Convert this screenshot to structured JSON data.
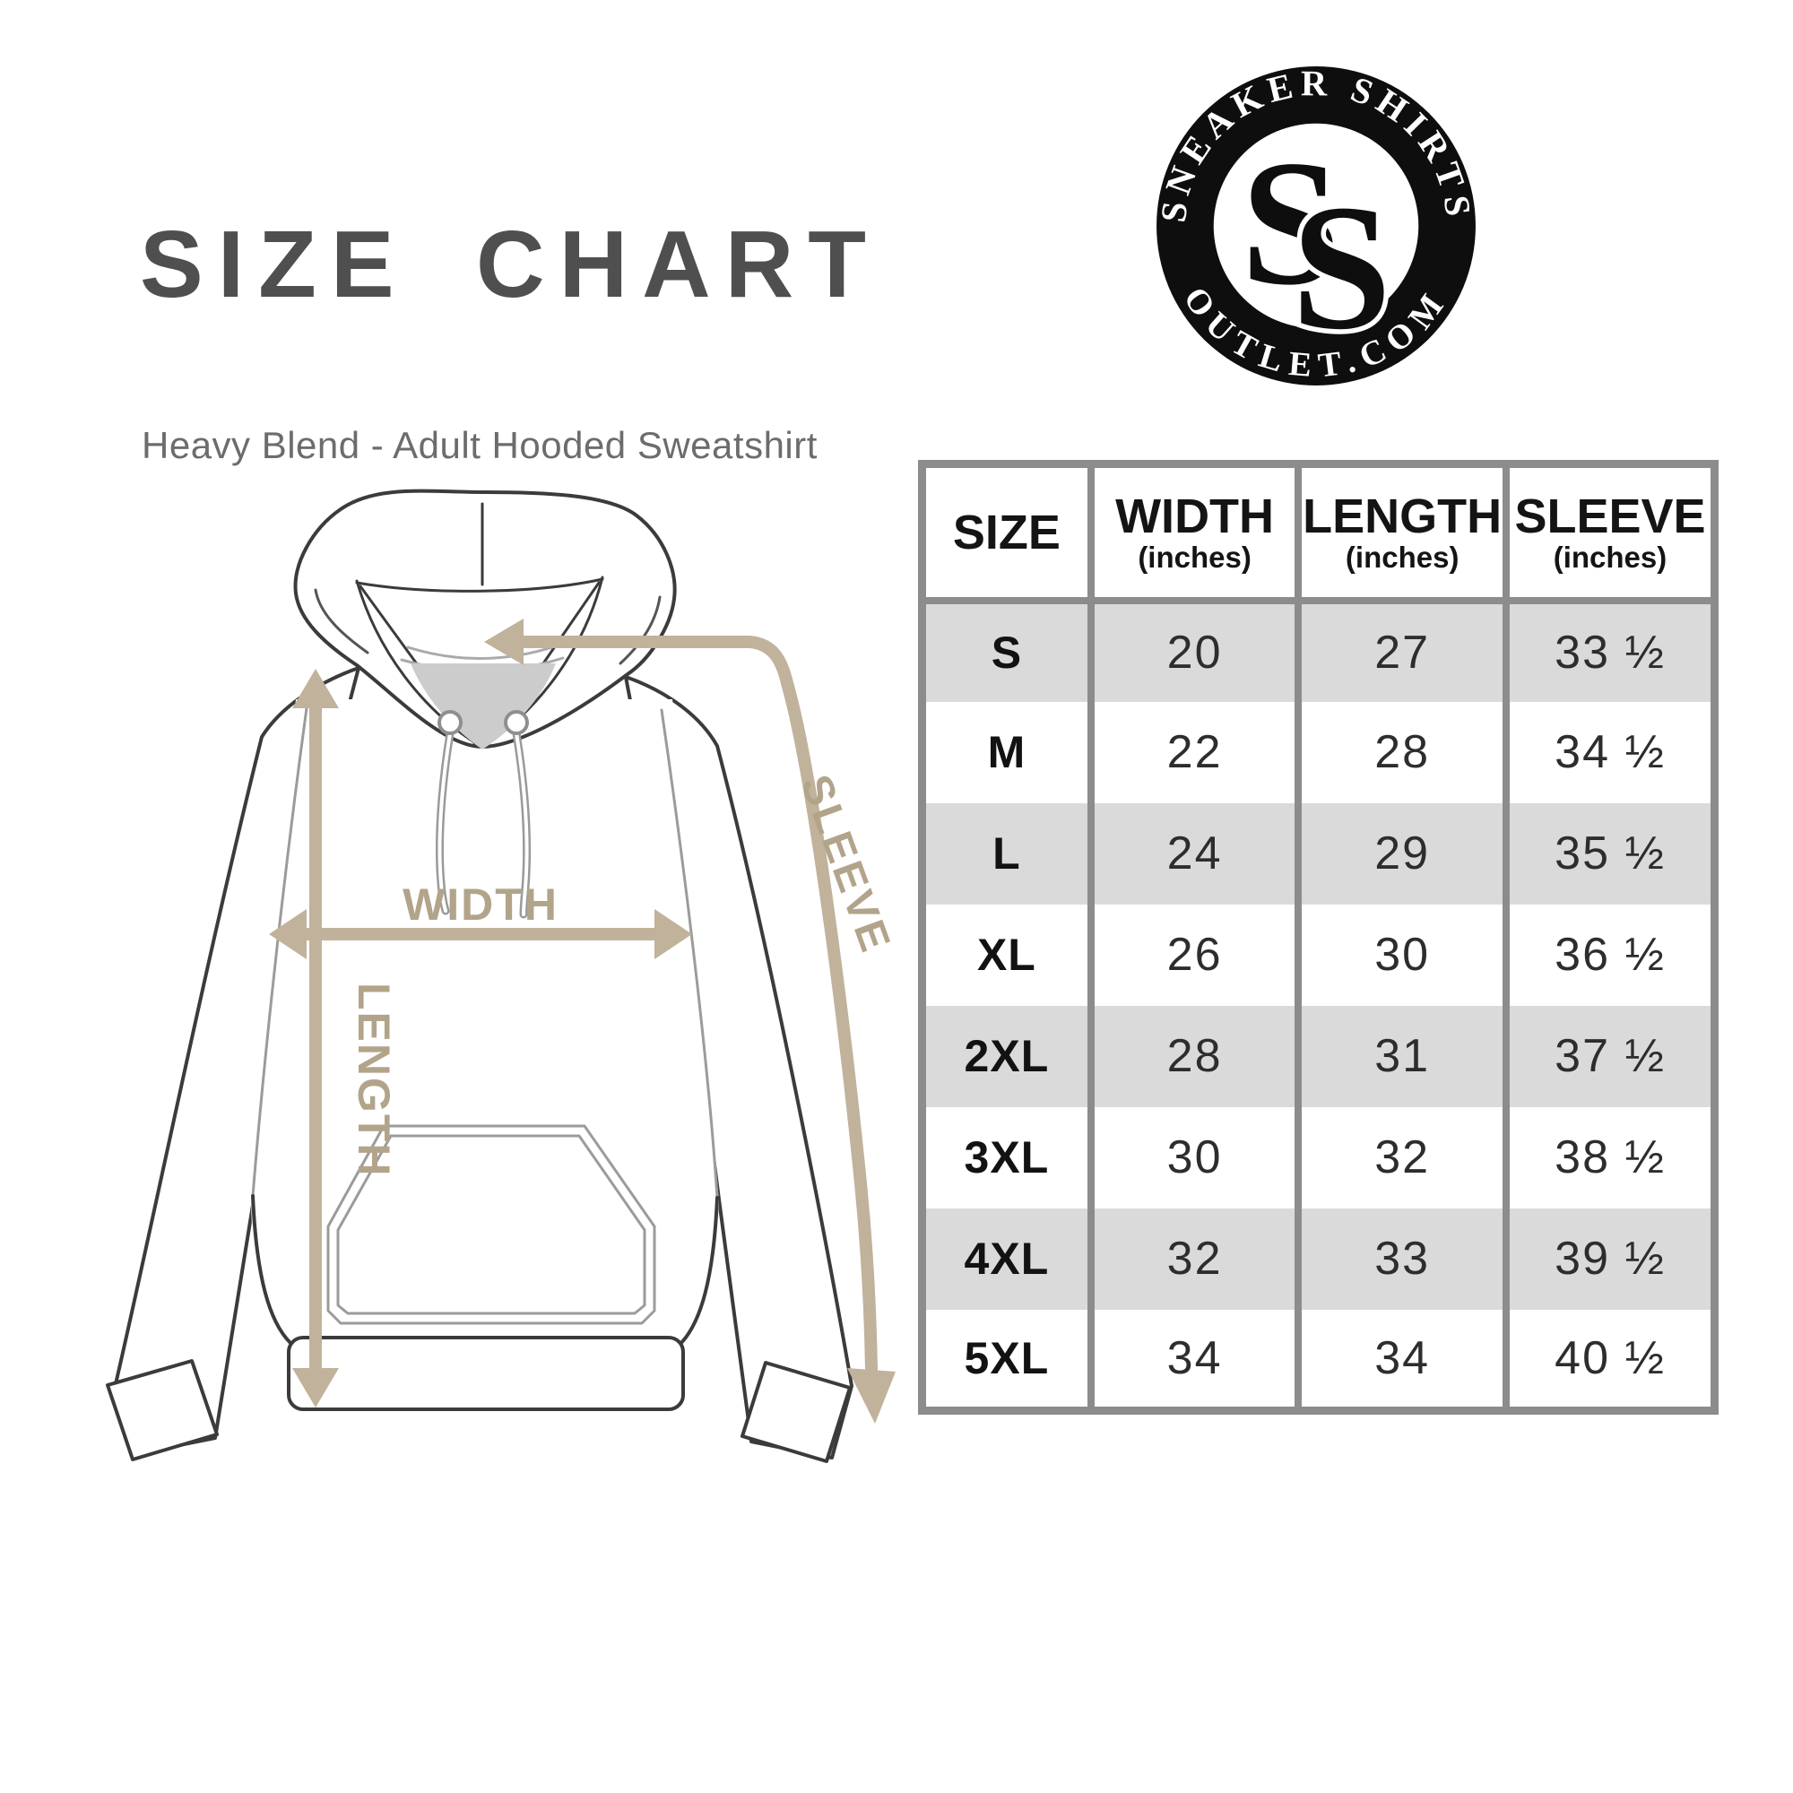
{
  "page": {
    "title": "SIZE CHART",
    "subtitle": "Heavy Blend - Adult Hooded Sweatshirt"
  },
  "logo": {
    "top_text": "SNEAKER SHIRTS",
    "bottom_text": "OUTLET.COM",
    "monogram_letters": [
      "S",
      "S"
    ],
    "ring_color": "#0e0e0e",
    "text_color": "#ffffff"
  },
  "diagram": {
    "labels": {
      "width": "WIDTH",
      "length": "LENGTH",
      "sleeve": "SLEEVE"
    },
    "arrow_color": "#c1b29b",
    "label_color": "#b2a48a",
    "outline_color": "#3b3b3b",
    "seam_color": "#9b9b9b",
    "neck_fill": "#cccccc"
  },
  "table": {
    "stripe_color": "#dadada",
    "border_color": "#8c8c8c",
    "columns": [
      {
        "label": "SIZE",
        "sub": ""
      },
      {
        "label": "WIDTH",
        "sub": "(inches)"
      },
      {
        "label": "LENGTH",
        "sub": "(inches)"
      },
      {
        "label": "SLEEVE",
        "sub": "(inches)"
      }
    ],
    "rows": [
      {
        "size": "S",
        "width": "20",
        "length": "27",
        "sleeve": "33 ½"
      },
      {
        "size": "M",
        "width": "22",
        "length": "28",
        "sleeve": "34 ½"
      },
      {
        "size": "L",
        "width": "24",
        "length": "29",
        "sleeve": "35 ½"
      },
      {
        "size": "XL",
        "width": "26",
        "length": "30",
        "sleeve": "36 ½"
      },
      {
        "size": "2XL",
        "width": "28",
        "length": "31",
        "sleeve": "37 ½"
      },
      {
        "size": "3XL",
        "width": "30",
        "length": "32",
        "sleeve": "38 ½"
      },
      {
        "size": "4XL",
        "width": "32",
        "length": "33",
        "sleeve": "39 ½"
      },
      {
        "size": "5XL",
        "width": "34",
        "length": "34",
        "sleeve": "40 ½"
      }
    ]
  }
}
